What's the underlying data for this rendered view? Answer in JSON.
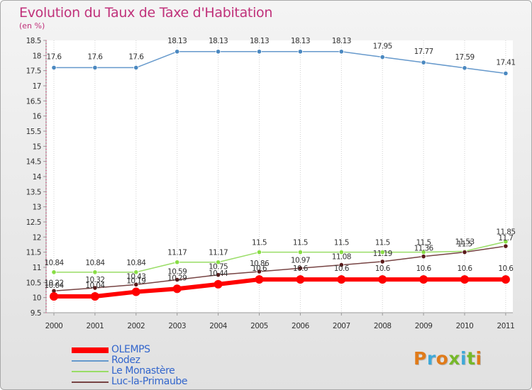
{
  "title": "Evolution du Taux de Taxe d'Habitation",
  "subtitle": "(en %)",
  "logo": {
    "text": "Proxiti",
    "letter_colors": [
      "#e07b1a",
      "#3fa9d8",
      "#e07b1a",
      "#76b82a",
      "#3fa9d8",
      "#76b82a",
      "#e07b1a"
    ]
  },
  "chart_data": {
    "type": "line",
    "x": [
      "2000",
      "2001",
      "2002",
      "2003",
      "2004",
      "2005",
      "2006",
      "2007",
      "2008",
      "2009",
      "2010",
      "2011"
    ],
    "ylim": [
      9.5,
      18.5
    ],
    "yticks": [
      "9.5",
      "10",
      "10.5",
      "11",
      "11.5",
      "12",
      "12.5",
      "13",
      "13.5",
      "14",
      "14.5",
      "15",
      "15.5",
      "16",
      "16.5",
      "17",
      "17.5",
      "18",
      "18.5"
    ],
    "grid": "vertical dotted",
    "legend_position": "bottom-left",
    "series": [
      {
        "name": "OLEMPS",
        "color": "#ff0000",
        "values": [
          10.04,
          10.04,
          10.19,
          10.29,
          10.44,
          10.6,
          10.6,
          10.6,
          10.6,
          10.6,
          10.6,
          10.6
        ],
        "labels": [
          "10.04",
          "10.04",
          "10.19",
          "10.29",
          "10.44",
          "10.6",
          "10.6",
          "10.6",
          "10.6",
          "10.6",
          "10.6",
          "10.6"
        ]
      },
      {
        "name": "Rodez",
        "color": "#6699cc",
        "values": [
          17.6,
          17.6,
          17.6,
          18.13,
          18.13,
          18.13,
          18.13,
          18.13,
          17.95,
          17.77,
          17.59,
          17.41
        ],
        "labels": [
          "17.6",
          "17.6",
          "17.6",
          "18.13",
          "18.13",
          "18.13",
          "18.13",
          "18.13",
          "17.95",
          "17.77",
          "17.59",
          "17.41"
        ]
      },
      {
        "name": "Le Monastère",
        "color": "#99dd66",
        "values": [
          10.84,
          10.84,
          10.84,
          11.17,
          11.17,
          11.5,
          11.5,
          11.5,
          11.5,
          11.5,
          11.53,
          11.85
        ],
        "labels": [
          "10.84",
          "10.84",
          "10.84",
          "11.17",
          "11.17",
          "11.5",
          "11.5",
          "11.5",
          "11.5",
          "11.5",
          "11.53",
          "11.85"
        ]
      },
      {
        "name": "Luc-la-Primaube",
        "color": "#774444",
        "values": [
          10.22,
          10.32,
          10.43,
          10.59,
          10.75,
          10.86,
          10.97,
          11.08,
          11.19,
          11.36,
          11.5,
          11.7
        ],
        "labels": [
          "10.22",
          "10.32",
          "10.43",
          "10.59",
          "10.75",
          "10.86",
          "10.97",
          "11.08",
          "11.19",
          "11.36",
          "11.5",
          "11.7"
        ]
      }
    ]
  }
}
